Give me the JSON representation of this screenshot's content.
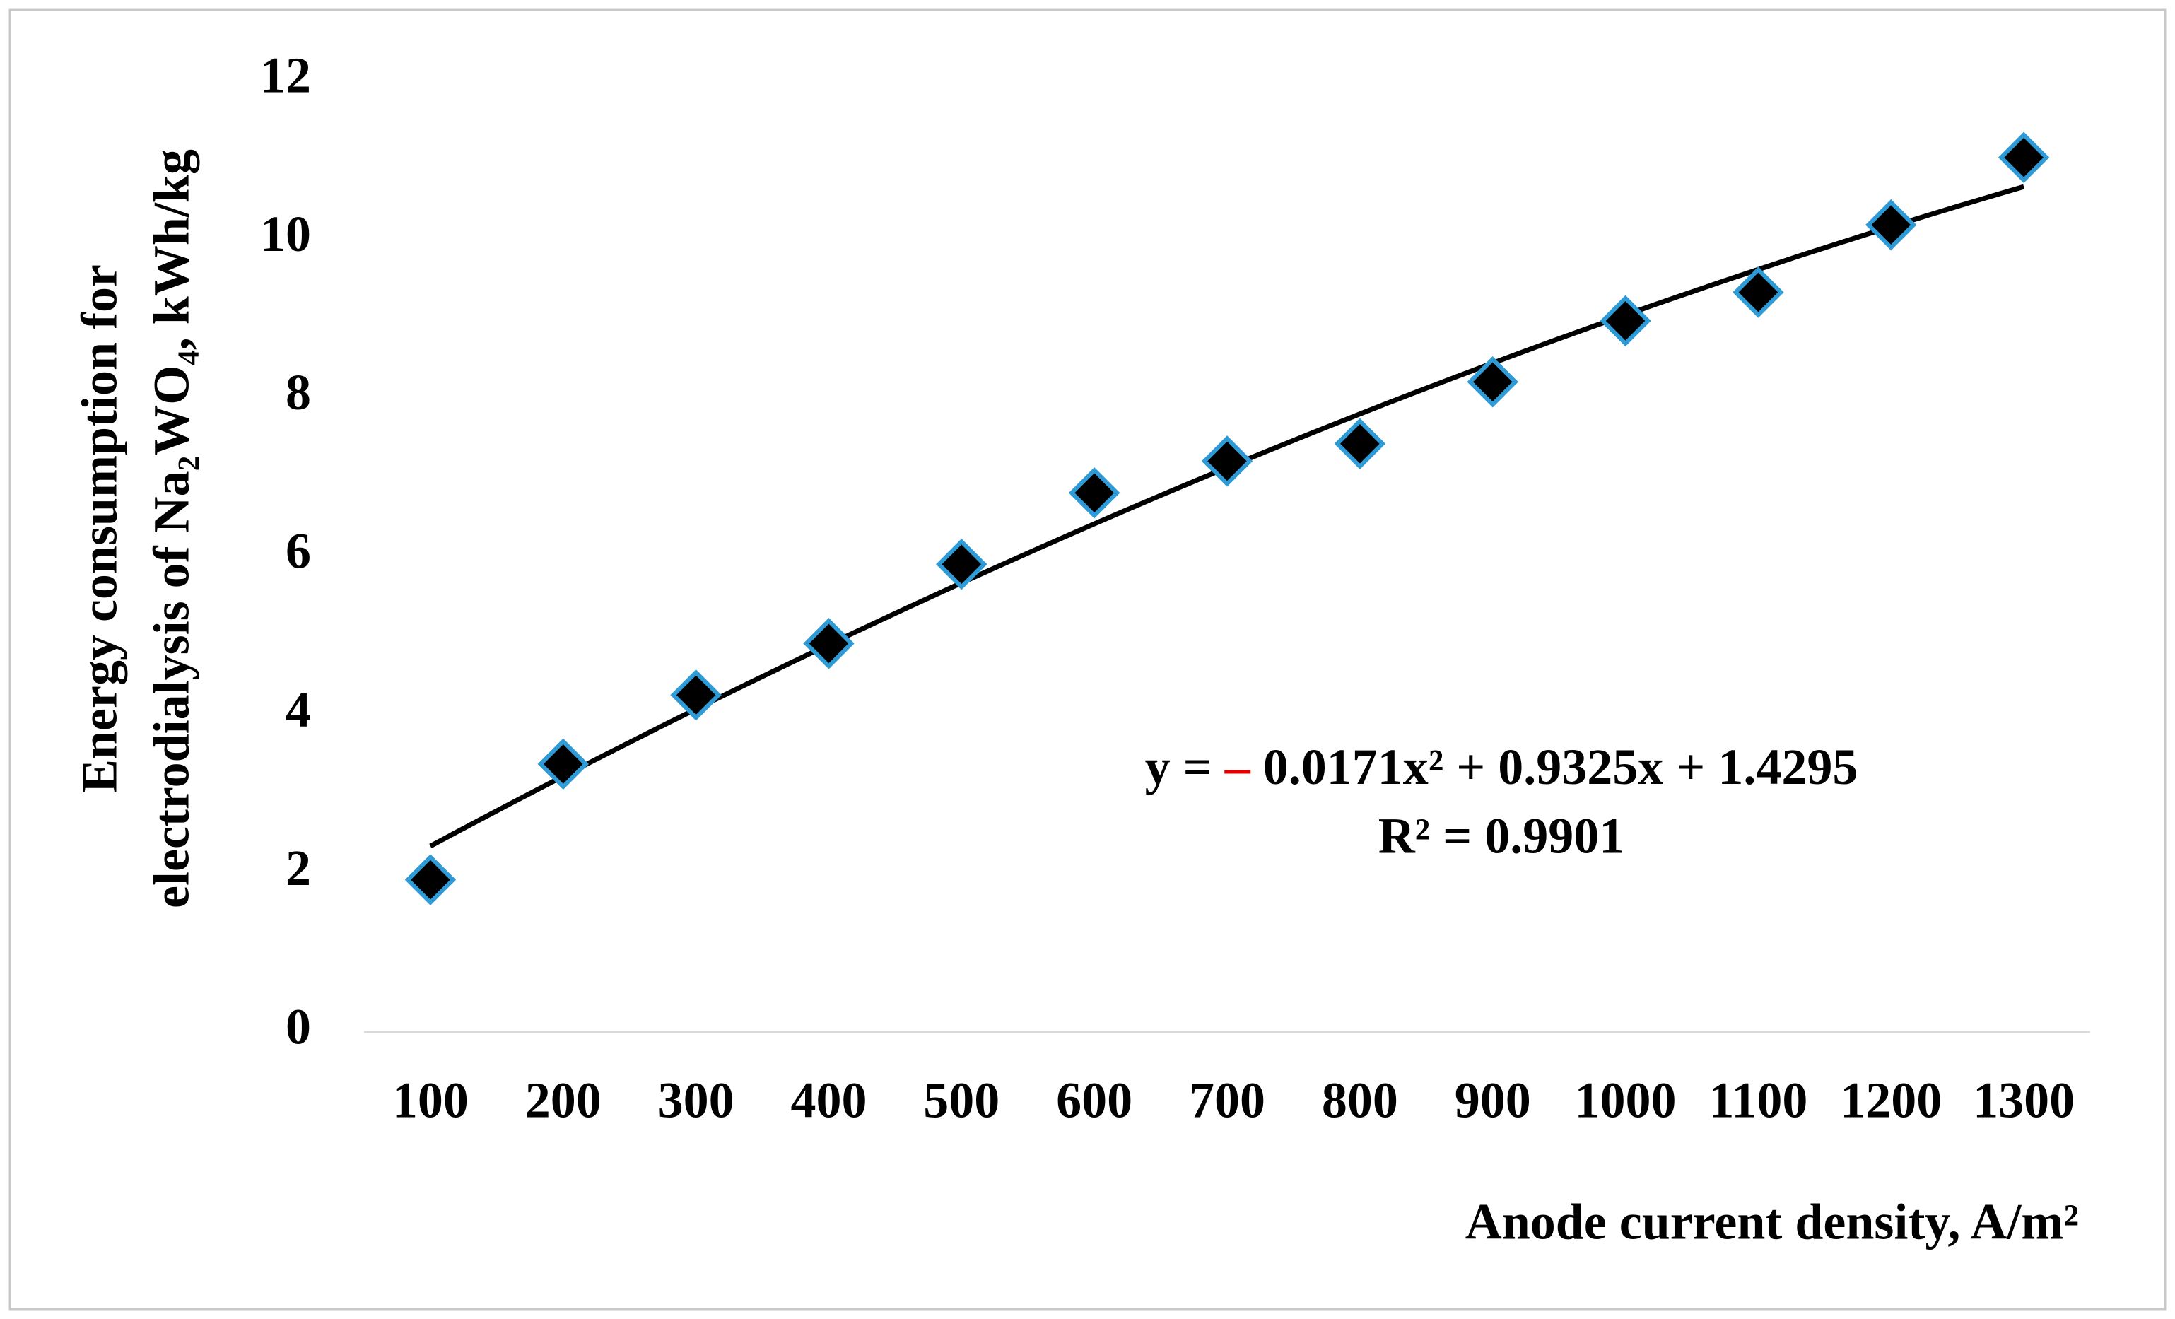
{
  "chart_data": {
    "type": "scatter",
    "y_label_lines": [
      "Energy consumption for",
      "electrodialysis of Na₂WO₄, kWh/kg"
    ],
    "x_label": "Anode current density, A/m²",
    "categories": [
      "100",
      "200",
      "300",
      "400",
      "500",
      "600",
      "700",
      "800",
      "900",
      "1000",
      "1100",
      "1200",
      "1300"
    ],
    "series": [
      {
        "color": "#000000",
        "edge_color": "#2e9bd6",
        "values": [
          1.92,
          3.38,
          4.25,
          4.9,
          5.9,
          6.8,
          7.2,
          7.42,
          8.2,
          8.97,
          9.33,
          10.18,
          11.03
        ]
      }
    ],
    "trendline": {
      "type": "poly2",
      "coefficients": [
        -0.0171,
        0.9325,
        1.4295
      ],
      "color": "#000000",
      "equation_parts": [
        "y = ",
        "–",
        " 0.0171x² + 0.9325x + 1.4295"
      ],
      "minus_color": "#e00000",
      "r_squared_label": "R² = 0.9901"
    },
    "ylim": [
      0,
      12
    ],
    "yticks": [
      0,
      2,
      4,
      6,
      8,
      10,
      12
    ],
    "grid": false
  }
}
